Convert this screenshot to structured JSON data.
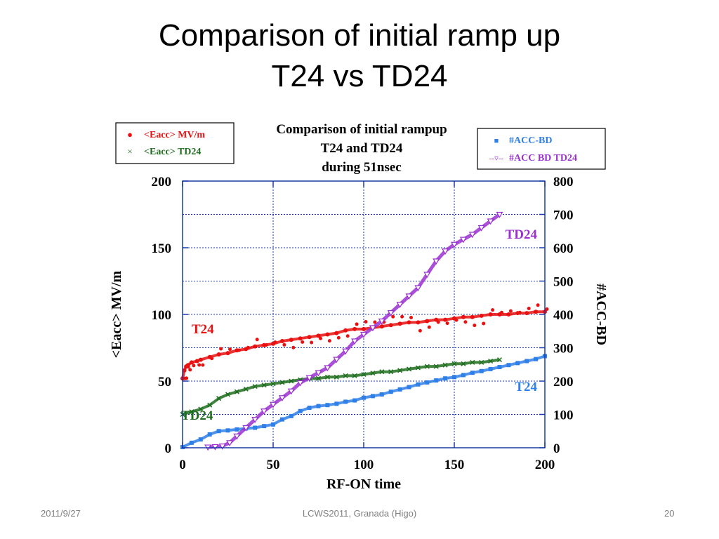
{
  "slide": {
    "title_line1": "Comparison of initial ramp up",
    "title_line2": "T24 vs TD24",
    "footer_date": "2011/9/27",
    "footer_center": "LCWS2011, Granada (Higo)",
    "footer_page": "20"
  },
  "chart_data": {
    "type": "scatter",
    "title": [
      "Comparison of initial rampup",
      "T24 and TD24",
      "during 51nsec"
    ],
    "xlabel": "RF-ON time",
    "ylabel_left": "<Eacc>  MV/m",
    "ylabel_right": "#ACC-BD",
    "xlim": [
      0,
      200
    ],
    "ylim_left": [
      0,
      200
    ],
    "ylim_right": [
      0,
      800
    ],
    "x_ticks": [
      "0",
      "50",
      "100",
      "150",
      "200"
    ],
    "y_ticks_left": [
      "0",
      "50",
      "100",
      "150",
      "200"
    ],
    "y_ticks_right": [
      "0",
      "100",
      "200",
      "300",
      "400",
      "500",
      "600",
      "700",
      "800"
    ],
    "grid": true,
    "legend_left": [
      {
        "label": "<Eacc> MV/m",
        "marker": "●"
      },
      {
        "label": "<Eacc> TD24",
        "marker": "×"
      }
    ],
    "legend_right": [
      {
        "label": "#ACC-BD",
        "marker": "■"
      },
      {
        "label": "#ACC BD  TD24",
        "marker": "--▿--"
      }
    ],
    "annotations": [
      {
        "text": "T24",
        "series": "eacc_t24"
      },
      {
        "text": "TD24",
        "series": "eacc_td24"
      },
      {
        "text": "TD24",
        "series": "bd_td24"
      },
      {
        "text": "T24",
        "series": "bd_t24"
      }
    ],
    "series": [
      {
        "name": "<Eacc> MV/m",
        "id": "eacc_t24",
        "axis": "left",
        "color": "#e81010",
        "marker": "circle",
        "x": [
          0,
          1,
          2,
          3,
          5,
          8,
          10,
          15,
          20,
          25,
          30,
          35,
          40,
          45,
          50,
          55,
          60,
          65,
          70,
          75,
          80,
          85,
          90,
          95,
          100,
          105,
          110,
          115,
          120,
          125,
          130,
          135,
          140,
          145,
          150,
          155,
          160,
          165,
          170,
          175,
          180,
          185,
          190,
          195,
          200
        ],
        "y": [
          52,
          58,
          61,
          62,
          64,
          65,
          66,
          68,
          70,
          71,
          73,
          74,
          76,
          77,
          78,
          80,
          81,
          82,
          83,
          84,
          85,
          86,
          88,
          89,
          89,
          90,
          91,
          92,
          93,
          94,
          94,
          95,
          96,
          96,
          97,
          98,
          98,
          99,
          100,
          100,
          100,
          101,
          101,
          102,
          102
        ]
      },
      {
        "name": "<Eacc> TD24",
        "id": "eacc_td24",
        "axis": "left",
        "color": "#1f6e1f",
        "marker": "x",
        "x": [
          0,
          5,
          10,
          15,
          20,
          25,
          30,
          35,
          40,
          45,
          50,
          55,
          60,
          65,
          70,
          75,
          80,
          85,
          90,
          95,
          100,
          105,
          110,
          115,
          120,
          125,
          130,
          135,
          140,
          145,
          150,
          155,
          160,
          165,
          170,
          175
        ],
        "y": [
          25,
          27,
          29,
          32,
          37,
          40,
          42,
          44,
          46,
          47,
          48,
          49,
          50,
          51,
          52,
          52,
          53,
          53,
          54,
          54,
          55,
          56,
          57,
          57,
          58,
          59,
          60,
          61,
          61,
          62,
          63,
          63,
          64,
          64,
          65,
          66
        ]
      },
      {
        "name": "#ACC-BD",
        "id": "bd_t24",
        "axis": "right",
        "color": "#2f7fe8",
        "marker": "square",
        "x": [
          0,
          5,
          10,
          15,
          20,
          25,
          30,
          35,
          40,
          45,
          50,
          55,
          60,
          65,
          70,
          75,
          80,
          85,
          90,
          95,
          100,
          105,
          110,
          115,
          120,
          125,
          130,
          135,
          140,
          145,
          150,
          155,
          160,
          165,
          170,
          175,
          180,
          185,
          190,
          195,
          200
        ],
        "y": [
          2,
          15,
          25,
          40,
          50,
          52,
          55,
          58,
          60,
          65,
          70,
          85,
          95,
          110,
          120,
          125,
          128,
          132,
          138,
          142,
          150,
          155,
          160,
          168,
          175,
          182,
          190,
          196,
          202,
          208,
          212,
          218,
          225,
          230,
          236,
          242,
          248,
          254,
          260,
          266,
          275
        ]
      },
      {
        "name": "#ACC BD  TD24",
        "id": "bd_td24",
        "axis": "right",
        "color": "#9b30d0",
        "marker": "triangle-down",
        "x": [
          14,
          18,
          22,
          26,
          30,
          35,
          40,
          45,
          50,
          55,
          60,
          65,
          70,
          75,
          80,
          85,
          90,
          95,
          100,
          105,
          110,
          115,
          120,
          125,
          130,
          135,
          140,
          145,
          150,
          155,
          160,
          165,
          170,
          175
        ],
        "y": [
          2,
          3,
          5,
          15,
          35,
          60,
          85,
          110,
          130,
          150,
          170,
          195,
          210,
          225,
          240,
          265,
          290,
          320,
          340,
          360,
          380,
          405,
          430,
          455,
          480,
          520,
          560,
          590,
          610,
          625,
          640,
          660,
          680,
          700
        ]
      }
    ]
  }
}
